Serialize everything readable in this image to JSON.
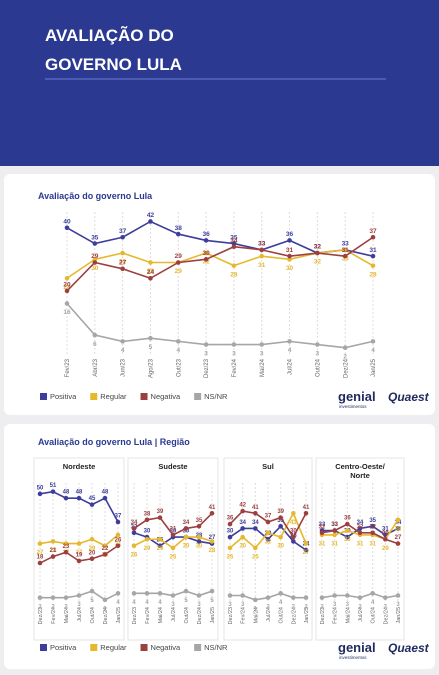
{
  "header": {
    "title_lines": [
      "AVALIAÇÃO DO",
      "GOVERNO LULA"
    ]
  },
  "brand": {
    "name": "genial",
    "sub": "investimentos",
    "partner": "Quaest"
  },
  "chart_data": [
    {
      "type": "line",
      "title": "Avaliação do governo Lula",
      "categories": [
        "Fev/23",
        "Abr/23",
        "Jun/23",
        "Ago/23",
        "Out/23",
        "Dez/23",
        "Fev/24",
        "Mai/24",
        "Jul/24",
        "Out/24",
        "Dez/24",
        "Jan/25"
      ],
      "ylim": [
        0,
        45
      ],
      "legend": "bottom-left",
      "series": [
        {
          "name": "Positiva",
          "color": "#3d3d9c",
          "values": [
            40,
            35,
            37,
            42,
            38,
            36,
            35,
            33,
            36,
            32,
            33,
            31
          ]
        },
        {
          "name": "Regular",
          "color": "#e6b82e",
          "values": [
            24,
            30,
            32,
            29,
            29,
            32,
            28,
            31,
            30,
            32,
            33,
            28
          ]
        },
        {
          "name": "Negativa",
          "color": "#9c3f3f",
          "values": [
            20,
            29,
            27,
            24,
            29,
            30,
            34,
            33,
            31,
            32,
            31,
            37
          ]
        },
        {
          "name": "NS/NR",
          "color": "#a6a6a6",
          "values": [
            16,
            6,
            4,
            5,
            4,
            3,
            3,
            3,
            4,
            3,
            2,
            4
          ]
        }
      ]
    },
    {
      "type": "line",
      "title": "Avaliação do governo Lula | Região",
      "ylim": [
        0,
        55
      ],
      "legend": [
        "Positiva",
        "Regular",
        "Negativa",
        "NS/NR"
      ],
      "panels": [
        {
          "title_lines": [
            "Nordeste"
          ],
          "categories": [
            "Dez/23",
            "Fev/24",
            "Mai/24",
            "Jul/24",
            "Out/24",
            "Dez/24",
            "Jan/25"
          ],
          "series": [
            {
              "color": "#3d3d9c",
              "values": [
                50,
                51,
                48,
                48,
                45,
                48,
                37
              ]
            },
            {
              "color": "#e6b82e",
              "values": [
                27,
                28,
                27,
                27,
                29,
                26,
                31
              ]
            },
            {
              "color": "#9c3f3f",
              "values": [
                18,
                21,
                23,
                19,
                20,
                22,
                26
              ]
            },
            {
              "color": "#a6a6a6",
              "values": [
                2,
                2,
                2,
                3,
                5,
                1,
                4
              ]
            }
          ]
        },
        {
          "title_lines": [
            "Sudeste"
          ],
          "categories": [
            "Dez/23",
            "Fev/24",
            "Mai/24",
            "Jul/24",
            "Out/24",
            "Dez/24",
            "Jan/25"
          ],
          "series": [
            {
              "color": "#3d3d9c",
              "values": [
                32,
                30,
                26,
                30,
                30,
                28,
                27
              ]
            },
            {
              "color": "#e6b82e",
              "values": [
                26,
                29,
                29,
                25,
                30,
                30,
                28
              ]
            },
            {
              "color": "#9c3f3f",
              "values": [
                34,
                38,
                39,
                31,
                34,
                35,
                41
              ]
            },
            {
              "color": "#a6a6a6",
              "values": [
                4,
                4,
                4,
                3,
                5,
                3,
                5
              ]
            }
          ]
        },
        {
          "title_lines": [
            "Sul"
          ],
          "categories": [
            "Dez/23",
            "Fev/24",
            "Mai/24",
            "Jul/24",
            "Out/24",
            "Dez/24",
            "Jan/25"
          ],
          "series": [
            {
              "color": "#3d3d9c",
              "values": [
                30,
                34,
                34,
                29,
                35,
                28,
                24
              ]
            },
            {
              "color": "#e6b82e",
              "values": [
                25,
                30,
                25,
                32,
                30,
                41,
                27
              ]
            },
            {
              "color": "#9c3f3f",
              "values": [
                36,
                42,
                41,
                37,
                39,
                30,
                41
              ]
            },
            {
              "color": "#a6a6a6",
              "values": [
                3,
                3,
                1,
                2,
                4,
                2,
                2
              ]
            }
          ]
        },
        {
          "title_lines": [
            "Centro-Oeste/",
            "Norte"
          ],
          "categories": [
            "Dez/23",
            "Fev/24",
            "Mai/24",
            "Jul/24",
            "Out/24",
            "Dez/24",
            "Jan/25"
          ],
          "series": [
            {
              "color": "#3d3d9c",
              "values": [
                33,
                33,
                30,
                34,
                35,
                31,
                34
              ]
            },
            {
              "color": "#e6b82e",
              "values": [
                31,
                31,
                33,
                31,
                31,
                29,
                38
              ]
            },
            {
              "color": "#9c3f3f",
              "values": [
                32,
                33,
                36,
                32,
                32,
                29,
                27
              ]
            },
            {
              "color": "#a6a6a6",
              "values": [
                2,
                3,
                3,
                2,
                4,
                2,
                3
              ]
            }
          ]
        }
      ]
    }
  ]
}
